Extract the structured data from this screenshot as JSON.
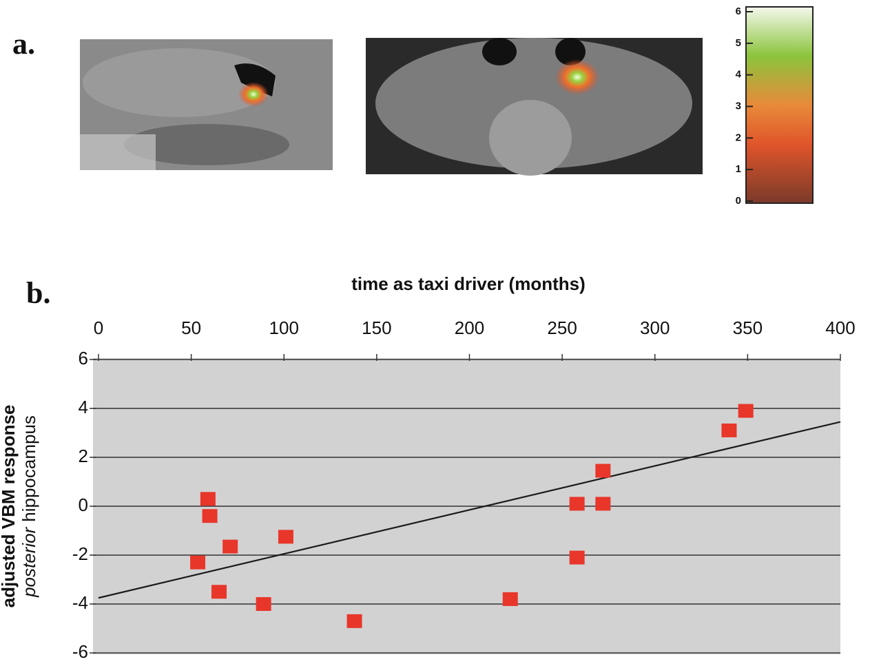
{
  "panel_labels": [
    "a.",
    "b."
  ],
  "colorbar": {
    "lim": [
      0,
      6
    ],
    "ticks": [
      0,
      1,
      2,
      3,
      4,
      5,
      6
    ]
  },
  "chart_data": {
    "type": "scatter",
    "x_label": "time as taxi driver (months)",
    "y_label": [
      "adjusted VBM response",
      "posterior",
      "hippocampus"
    ],
    "x": [
      53.5,
      59,
      60,
      65,
      71,
      89,
      101,
      138,
      222,
      258,
      258,
      272,
      272,
      340,
      349
    ],
    "values": [
      -2.3,
      0.3,
      -0.4,
      -3.5,
      -1.65,
      -4.0,
      -1.25,
      -4.7,
      -3.8,
      0.1,
      -2.1,
      0.1,
      1.45,
      3.1,
      3.9
    ],
    "color": "#e8362a",
    "trendline": {
      "x": [
        0,
        400
      ],
      "values": [
        -3.75,
        3.45
      ],
      "color": "#1a1a1a"
    },
    "xlim": [
      0,
      400
    ],
    "xticks": [
      0,
      50,
      100,
      150,
      200,
      250,
      300,
      350,
      400
    ],
    "ylim": [
      -6,
      6
    ],
    "yticks": [
      6,
      4,
      2,
      0,
      -2,
      -4,
      -6
    ],
    "grid": true
  }
}
